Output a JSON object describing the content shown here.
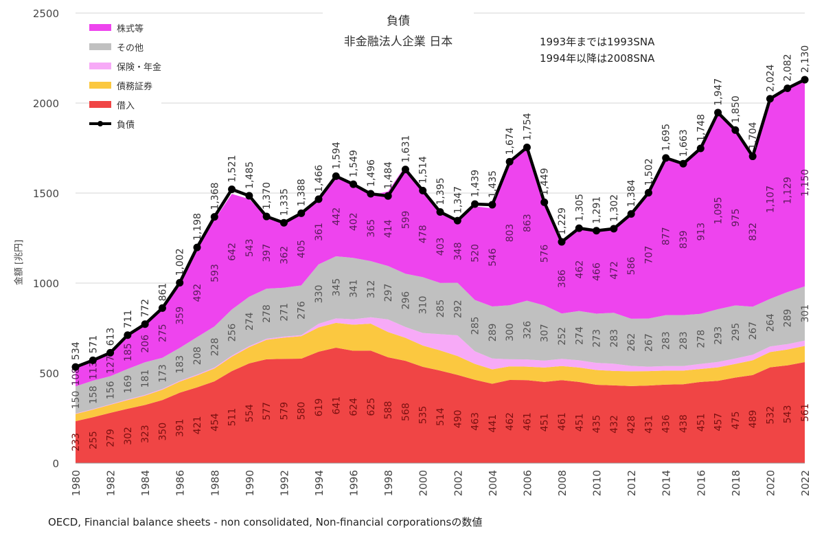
{
  "title_line1": "負債",
  "title_line2": "非金融法人企業 日本",
  "note_line1": "1993年までは1993SNA",
  "note_line2": "1994年以降は2008SNA",
  "source": "OECD, Financial balance sheets - non consolidated, Non-financial corporationsの数値",
  "legend": [
    {
      "label": "株式等",
      "color": "#ee44ee",
      "kind": "area"
    },
    {
      "label": "その他",
      "color": "#c0c0c0",
      "kind": "area"
    },
    {
      "label": "保険・年金",
      "color": "#f7aaf7",
      "kind": "area"
    },
    {
      "label": "債務証券",
      "color": "#fbc840",
      "kind": "area"
    },
    {
      "label": "借入",
      "color": "#f04545",
      "kind": "area"
    },
    {
      "label": "負債",
      "color": "#000000",
      "kind": "line"
    }
  ],
  "chart_data": {
    "type": "area",
    "title": "負債 非金融法人企業 日本",
    "xlabel": "",
    "ylabel": "金額 [兆円]",
    "ylim": [
      0,
      2500
    ],
    "yticks": [
      0,
      500,
      1000,
      1500,
      2000,
      2500
    ],
    "x": [
      1980,
      1981,
      1982,
      1983,
      1984,
      1985,
      1986,
      1987,
      1988,
      1989,
      1990,
      1991,
      1992,
      1993,
      1994,
      1995,
      1996,
      1997,
      1998,
      1999,
      2000,
      2001,
      2002,
      2003,
      2004,
      2005,
      2006,
      2007,
      2008,
      2009,
      2010,
      2011,
      2012,
      2013,
      2014,
      2015,
      2016,
      2017,
      2018,
      2019,
      2020,
      2021,
      2022
    ],
    "xtick_labels": [
      "1980",
      "1982",
      "1984",
      "1986",
      "1988",
      "1990",
      "1992",
      "1994",
      "1996",
      "1998",
      "2000",
      "2002",
      "2004",
      "2006",
      "2008",
      "2010",
      "2012",
      "2014",
      "2016",
      "2018",
      "2020",
      "2022"
    ],
    "grid": true,
    "legend_position": "top-left",
    "stacked": true,
    "series": [
      {
        "name": "借入",
        "color": "#f04545",
        "values": [
          233,
          255,
          279,
          302,
          323,
          350,
          391,
          421,
          454,
          511,
          554,
          577,
          579,
          580,
          619,
          641,
          624,
          625,
          588,
          568,
          535,
          514,
          490,
          463,
          441,
          462,
          461,
          451,
          461,
          451,
          435,
          432,
          428,
          431,
          436,
          438,
          451,
          457,
          475,
          489,
          532,
          543,
          561
        ]
      },
      {
        "name": "債務証券",
        "color": "#fbc840",
        "values": [
          40,
          42,
          45,
          48,
          52,
          58,
          62,
          66,
          72,
          80,
          90,
          108,
          118,
          125,
          135,
          138,
          145,
          150,
          140,
          128,
          118,
          112,
          105,
          88,
          80,
          75,
          75,
          80,
          78,
          80,
          82,
          80,
          82,
          80,
          78,
          76,
          72,
          75,
          76,
          82,
          85,
          88,
          90
        ]
      },
      {
        "name": "保険・年金",
        "color": "#f7aaf7",
        "values": [
          3,
          3,
          3,
          4,
          4,
          4,
          4,
          5,
          5,
          6,
          6,
          6,
          6,
          6,
          20,
          25,
          30,
          35,
          70,
          60,
          70,
          90,
          115,
          70,
          60,
          40,
          40,
          38,
          40,
          40,
          40,
          40,
          30,
          25,
          25,
          25,
          28,
          30,
          30,
          31,
          31,
          30,
          30
        ]
      },
      {
        "name": "その他",
        "color": "#c0c0c0",
        "values": [
          150,
          158,
          156,
          169,
          181,
          173,
          183,
          208,
          228,
          256,
          274,
          278,
          271,
          276,
          330,
          345,
          341,
          312,
          297,
          296,
          310,
          285,
          292,
          285,
          289,
          300,
          326,
          307,
          252,
          274,
          273,
          283,
          262,
          267,
          283,
          283,
          278,
          293,
          295,
          267,
          264,
          289,
          301
        ]
      },
      {
        "name": "株式等",
        "color": "#ee44ee",
        "values": [
          108,
          113,
          127,
          185,
          206,
          275,
          359,
          492,
          593,
          642,
          543,
          397,
          362,
          405,
          361,
          442,
          402,
          365,
          414,
          599,
          478,
          403,
          348,
          520,
          546,
          803,
          863,
          576,
          386,
          462,
          466,
          472,
          586,
          707,
          877,
          839,
          913,
          1095,
          975,
          832,
          1107,
          1129,
          1150
        ]
      }
    ],
    "total": {
      "name": "負債",
      "color": "#000000",
      "values": [
        534,
        571,
        613,
        711,
        772,
        861,
        1002,
        1198,
        1368,
        1521,
        1485,
        1370,
        1335,
        1388,
        1466,
        1594,
        1549,
        1496,
        1484,
        1631,
        1514,
        1395,
        1347,
        1439,
        1435,
        1674,
        1754,
        1449,
        1229,
        1305,
        1291,
        1302,
        1384,
        1502,
        1695,
        1663,
        1748,
        1947,
        1850,
        1704,
        2024,
        2082,
        2130
      ],
      "labels": [
        "534",
        "571",
        "613",
        "711",
        "772",
        "861",
        "1,002",
        "1,198",
        "1,368",
        "1,521",
        "1,485",
        "1,370",
        "1,335",
        "1,388",
        "1,466",
        "1,594",
        "1,549",
        "1,496",
        "1,484",
        "1,631",
        "1,514",
        "1,395",
        "1,347",
        "1,439",
        "1,435",
        "1,674",
        "1,754",
        "1,449",
        "1,229",
        "1,305",
        "1,291",
        "1,302",
        "1,384",
        "1,502",
        "1,695",
        "1,663",
        "1,748",
        "1,947",
        "1,850",
        "1,704",
        "2,024",
        "2,082",
        "2,130"
      ]
    },
    "value_labels": {
      "借入": [
        "233",
        "255",
        "279",
        "302",
        "323",
        "350",
        "391",
        "421",
        "454",
        "511",
        "554",
        "577",
        "579",
        "580",
        "619",
        "641",
        "624",
        "625",
        "588",
        "568",
        "535",
        "514",
        "490",
        "463",
        "441",
        "462",
        "461",
        "451",
        "461",
        "451",
        "435",
        "432",
        "428",
        "431",
        "436",
        "438",
        "451",
        "457",
        "475",
        "489",
        "532",
        "543",
        "561"
      ],
      "その他": [
        "150",
        "158",
        "156",
        "169",
        "181",
        "173",
        "183",
        "208",
        "228",
        "256",
        "274",
        "278",
        "271",
        "276",
        "330",
        "345",
        "341",
        "312",
        "297",
        "296",
        "310",
        "285",
        "292",
        "285",
        "289",
        "300",
        "326",
        "307",
        "252",
        "274",
        "273",
        "283",
        "262",
        "267",
        "283",
        "283",
        "278",
        "293",
        "295",
        "267",
        "264",
        "289",
        "301"
      ],
      "株式等": [
        "108",
        "113",
        "127",
        "185",
        "206",
        "275",
        "359",
        "492",
        "593",
        "642",
        "543",
        "397",
        "362",
        "405",
        "361",
        "442",
        "402",
        "365",
        "414",
        "599",
        "478",
        "403",
        "348",
        "520",
        "546",
        "803",
        "863",
        "576",
        "386",
        "462",
        "466",
        "472",
        "586",
        "707",
        "877",
        "839",
        "913",
        "1,095",
        "975",
        "832",
        "1,107",
        "1,129",
        "1,150"
      ]
    }
  }
}
